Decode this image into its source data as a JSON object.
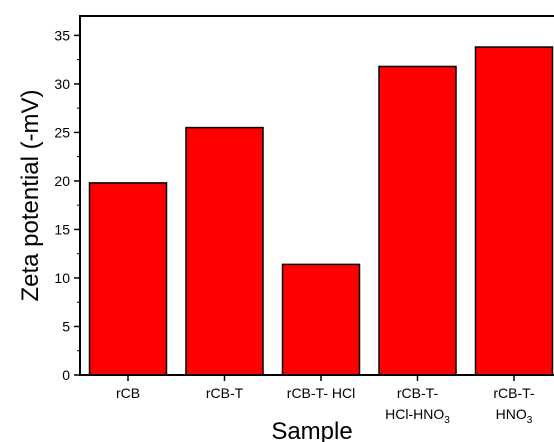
{
  "chart_data": {
    "type": "bar",
    "categories": [
      {
        "line1": "rCB",
        "line2": null
      },
      {
        "line1": "rCB-T",
        "line2": null
      },
      {
        "line1": "rCB-T- HCl",
        "line2": null
      },
      {
        "line1": "rCB-T-",
        "line2": {
          "base": "HCl-HNO",
          "sub": "3"
        }
      },
      {
        "line1": "rCB-T-",
        "line2": {
          "base": "HNO",
          "sub": "3"
        }
      }
    ],
    "values": [
      19.8,
      25.5,
      11.4,
      31.8,
      33.8
    ],
    "xlabel": "Sample",
    "ylabel": "Zeta potential (-mV)",
    "ylim": [
      0,
      37
    ],
    "yticks": [
      0,
      5,
      10,
      15,
      20,
      25,
      30,
      35
    ],
    "bar_color": "#ff0000",
    "edge_color": "#000000",
    "grid": false,
    "legend": null
  }
}
